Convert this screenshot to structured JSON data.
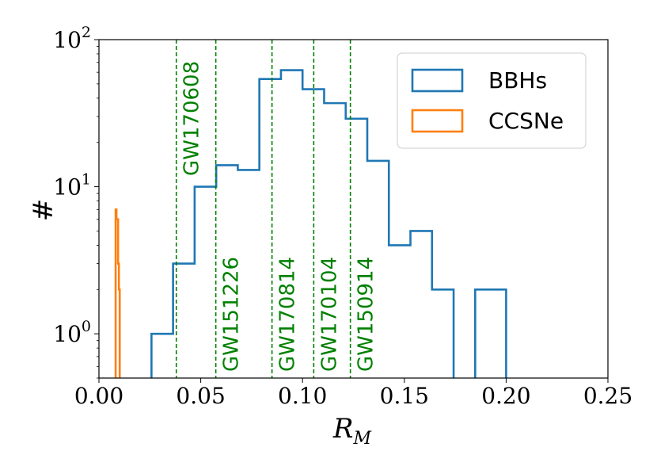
{
  "chart_data": {
    "type": "histogram",
    "xlabel": "R",
    "xlabel_subscript": "M",
    "ylabel": "#",
    "xlim": [
      0.0,
      0.25
    ],
    "ylim": [
      0.5,
      100
    ],
    "yscale": "log",
    "xticks": [
      0.0,
      0.05,
      0.1,
      0.15,
      0.2,
      0.25
    ],
    "xtick_labels": [
      "0.00",
      "0.05",
      "0.10",
      "0.15",
      "0.20",
      "0.25"
    ],
    "yticks": [
      {
        "value": 1,
        "base": "10",
        "exp": "0"
      },
      {
        "value": 10,
        "base": "10",
        "exp": "1"
      },
      {
        "value": 100,
        "base": "10",
        "exp": "2"
      }
    ],
    "legend_position": "top-right",
    "series": [
      {
        "name": "BBHs",
        "color": "#1f77b4",
        "bin_edges": [
          0.0258,
          0.0364,
          0.047,
          0.0576,
          0.0682,
          0.0788,
          0.0894,
          0.1,
          0.1106,
          0.1212,
          0.1318,
          0.1424,
          0.153,
          0.1636,
          0.1742,
          0.1848,
          0.1954,
          0.2
        ],
        "counts": [
          1,
          3,
          10,
          14,
          13,
          54,
          62,
          46,
          37,
          29,
          15,
          4,
          5,
          2,
          0,
          2,
          2
        ]
      },
      {
        "name": "CCSNe",
        "color": "#ff7f0e",
        "bin_edges": [
          0.0078,
          0.0082,
          0.0086,
          0.009,
          0.0094,
          0.0098,
          0.0102
        ],
        "counts": [
          0,
          7,
          6,
          6,
          3,
          2
        ]
      }
    ],
    "events": [
      {
        "name": "GW170608",
        "x": 0.038,
        "label_position": "top"
      },
      {
        "name": "GW151226",
        "x": 0.0574,
        "label_position": "bottom"
      },
      {
        "name": "GW170814",
        "x": 0.085,
        "label_position": "bottom"
      },
      {
        "name": "GW170104",
        "x": 0.1055,
        "label_position": "bottom"
      },
      {
        "name": "GW150914",
        "x": 0.1235,
        "label_position": "bottom"
      }
    ],
    "event_color": "#008000"
  }
}
